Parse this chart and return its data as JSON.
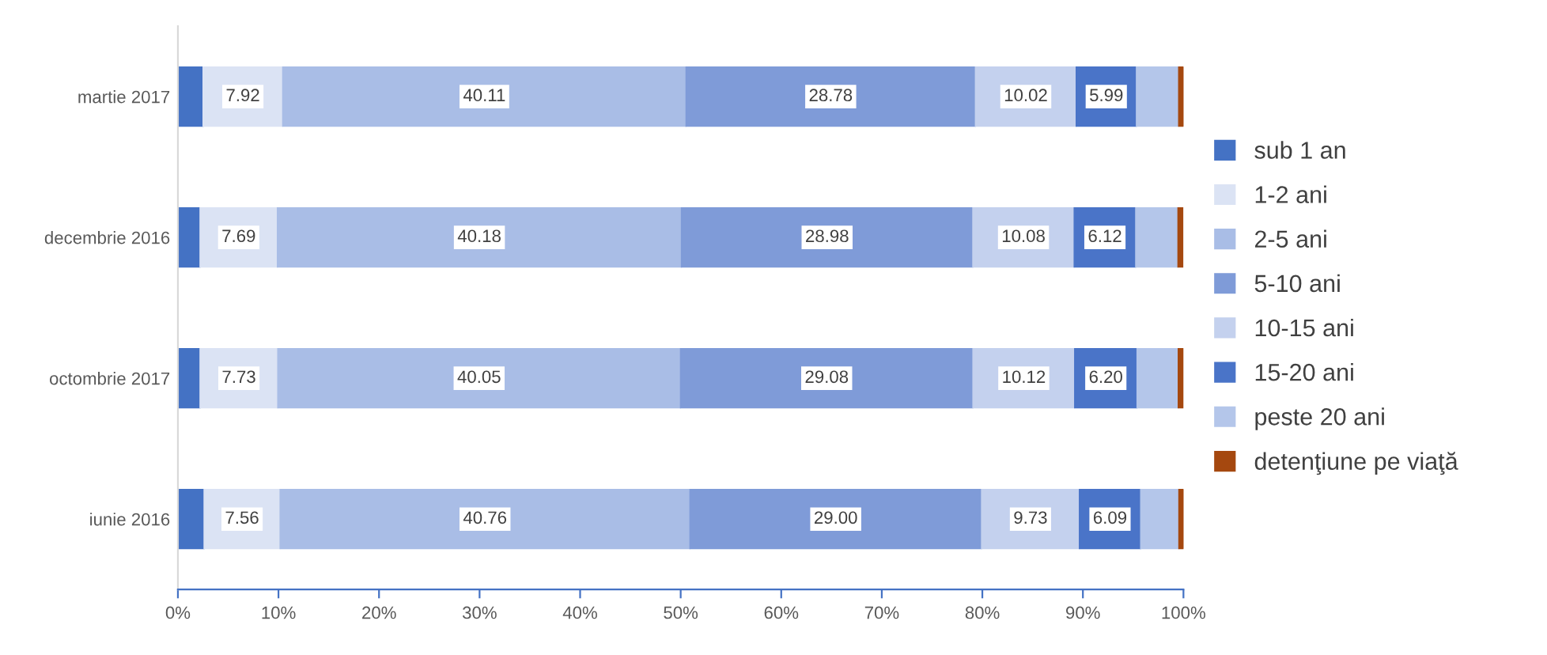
{
  "chart_data": {
    "type": "bar",
    "orientation": "horizontal",
    "stacked": true,
    "categories": [
      "martie 2017",
      "decembrie 2016",
      "octombrie 2017",
      "iunie 2016"
    ],
    "series": [
      {
        "name": "sub 1 an",
        "color": "#4472c4",
        "values": [
          2.5,
          2.2,
          2.2,
          2.6
        ]
      },
      {
        "name": "1-2 ani",
        "color": "#dbe3f4",
        "values": [
          7.92,
          7.69,
          7.73,
          7.56
        ],
        "value_labels": [
          "7.92",
          "7.69",
          "7.73",
          "7.56"
        ]
      },
      {
        "name": "2-5 ani",
        "color": "#a9bde6",
        "values": [
          40.11,
          40.18,
          40.05,
          40.76
        ],
        "value_labels": [
          "40.11",
          "40.18",
          "40.05",
          "40.76"
        ]
      },
      {
        "name": "5-10 ani",
        "color": "#7f9bd8",
        "values": [
          28.78,
          28.98,
          29.08,
          29.0
        ],
        "value_labels": [
          "28.78",
          "28.98",
          "29.08",
          "29.00"
        ]
      },
      {
        "name": "10-15 ani",
        "color": "#c4d1ee",
        "values": [
          10.02,
          10.08,
          10.12,
          9.73
        ],
        "value_labels": [
          "10.02",
          "10.08",
          "10.12",
          "9.73"
        ]
      },
      {
        "name": "15-20 ani",
        "color": "#4a74c8",
        "values": [
          5.99,
          6.12,
          6.2,
          6.09
        ],
        "value_labels": [
          "5.99",
          "6.12",
          "6.20",
          "6.09"
        ]
      },
      {
        "name": "peste 20 ani",
        "color": "#b4c6ea",
        "values": [
          4.2,
          4.2,
          4.1,
          3.8
        ]
      },
      {
        "name": "detenţiune pe viaţă",
        "color": "#a5480f",
        "values": [
          0.5,
          0.5,
          0.5,
          0.5
        ]
      }
    ],
    "xlim": [
      0,
      100
    ],
    "xticks": [
      {
        "value": 0,
        "label": "0%"
      },
      {
        "value": 10,
        "label": "10%"
      },
      {
        "value": 20,
        "label": "20%"
      },
      {
        "value": 30,
        "label": "30%"
      },
      {
        "value": 40,
        "label": "40%"
      },
      {
        "value": 50,
        "label": "50%"
      },
      {
        "value": 60,
        "label": "60%"
      },
      {
        "value": 70,
        "label": "70%"
      },
      {
        "value": 80,
        "label": "80%"
      },
      {
        "value": 90,
        "label": "90%"
      },
      {
        "value": 100,
        "label": "100%"
      }
    ],
    "legend": "right",
    "grid": false
  }
}
